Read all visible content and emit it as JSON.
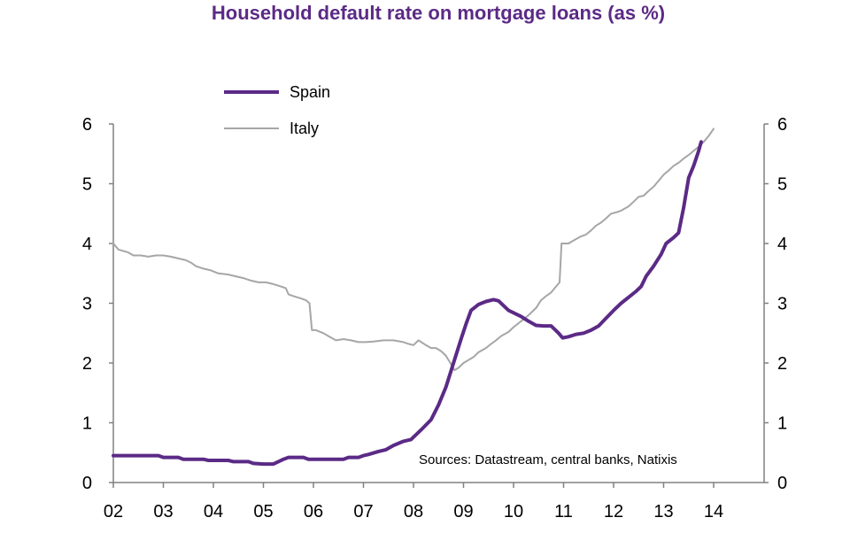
{
  "chart_data": {
    "type": "line",
    "title": "Household default rate on mortgage loans (as %)",
    "xlabel": "",
    "ylabel": "",
    "x_ticks": [
      "02",
      "03",
      "04",
      "05",
      "06",
      "07",
      "08",
      "09",
      "10",
      "11",
      "12",
      "13",
      "14"
    ],
    "ylim": [
      0,
      6
    ],
    "y_ticks": [
      "0",
      "1",
      "2",
      "3",
      "4",
      "5",
      "6"
    ],
    "y2_ticks": [
      "0",
      "1",
      "2",
      "3",
      "4",
      "5",
      "6"
    ],
    "legend_position": "top-left",
    "grid": false,
    "source_note": "Sources: Datastream, central banks, Natixis",
    "series": [
      {
        "name": "Spain",
        "color": "#5b2a86",
        "points": [
          [
            2002.0,
            0.45
          ],
          [
            2002.5,
            0.45
          ],
          [
            2002.9,
            0.45
          ],
          [
            2003.0,
            0.42
          ],
          [
            2003.3,
            0.42
          ],
          [
            2003.4,
            0.39
          ],
          [
            2003.8,
            0.39
          ],
          [
            2003.9,
            0.37
          ],
          [
            2004.3,
            0.37
          ],
          [
            2004.4,
            0.35
          ],
          [
            2004.7,
            0.35
          ],
          [
            2004.8,
            0.32
          ],
          [
            2005.0,
            0.31
          ],
          [
            2005.2,
            0.31
          ],
          [
            2005.3,
            0.35
          ],
          [
            2005.4,
            0.39
          ],
          [
            2005.5,
            0.42
          ],
          [
            2005.8,
            0.42
          ],
          [
            2005.9,
            0.39
          ],
          [
            2006.4,
            0.39
          ],
          [
            2006.6,
            0.39
          ],
          [
            2006.7,
            0.42
          ],
          [
            2006.9,
            0.42
          ],
          [
            2007.0,
            0.45
          ],
          [
            2007.1,
            0.47
          ],
          [
            2007.3,
            0.52
          ],
          [
            2007.45,
            0.55
          ],
          [
            2007.6,
            0.62
          ],
          [
            2007.8,
            0.69
          ],
          [
            2007.95,
            0.72
          ],
          [
            2008.15,
            0.88
          ],
          [
            2008.35,
            1.05
          ],
          [
            2008.5,
            1.3
          ],
          [
            2008.65,
            1.6
          ],
          [
            2008.8,
            2.0
          ],
          [
            2008.95,
            2.4
          ],
          [
            2009.05,
            2.65
          ],
          [
            2009.15,
            2.88
          ],
          [
            2009.3,
            2.98
          ],
          [
            2009.45,
            3.03
          ],
          [
            2009.6,
            3.06
          ],
          [
            2009.7,
            3.04
          ],
          [
            2009.8,
            2.96
          ],
          [
            2009.9,
            2.88
          ],
          [
            2010.0,
            2.84
          ],
          [
            2010.15,
            2.78
          ],
          [
            2010.3,
            2.7
          ],
          [
            2010.45,
            2.63
          ],
          [
            2010.6,
            2.62
          ],
          [
            2010.75,
            2.62
          ],
          [
            2010.9,
            2.5
          ],
          [
            2010.98,
            2.42
          ],
          [
            2011.1,
            2.44
          ],
          [
            2011.25,
            2.48
          ],
          [
            2011.4,
            2.5
          ],
          [
            2011.55,
            2.55
          ],
          [
            2011.7,
            2.62
          ],
          [
            2011.85,
            2.75
          ],
          [
            2012.0,
            2.88
          ],
          [
            2012.15,
            3.0
          ],
          [
            2012.3,
            3.1
          ],
          [
            2012.45,
            3.2
          ],
          [
            2012.55,
            3.28
          ],
          [
            2012.65,
            3.45
          ],
          [
            2012.8,
            3.62
          ],
          [
            2012.95,
            3.82
          ],
          [
            2013.05,
            4.0
          ],
          [
            2013.2,
            4.1
          ],
          [
            2013.3,
            4.18
          ],
          [
            2013.4,
            4.6
          ],
          [
            2013.5,
            5.1
          ],
          [
            2013.6,
            5.3
          ],
          [
            2013.7,
            5.55
          ],
          [
            2013.75,
            5.7
          ]
        ]
      },
      {
        "name": "Italy",
        "color": "#a6a6a6",
        "points": [
          [
            2002.0,
            4.0
          ],
          [
            2002.1,
            3.9
          ],
          [
            2002.3,
            3.85
          ],
          [
            2002.4,
            3.8
          ],
          [
            2002.55,
            3.8
          ],
          [
            2002.7,
            3.78
          ],
          [
            2002.85,
            3.8
          ],
          [
            2003.0,
            3.8
          ],
          [
            2003.15,
            3.78
          ],
          [
            2003.3,
            3.75
          ],
          [
            2003.45,
            3.72
          ],
          [
            2003.55,
            3.68
          ],
          [
            2003.65,
            3.62
          ],
          [
            2003.8,
            3.58
          ],
          [
            2003.95,
            3.55
          ],
          [
            2004.1,
            3.5
          ],
          [
            2004.3,
            3.48
          ],
          [
            2004.45,
            3.45
          ],
          [
            2004.6,
            3.42
          ],
          [
            2004.75,
            3.38
          ],
          [
            2004.9,
            3.35
          ],
          [
            2005.05,
            3.35
          ],
          [
            2005.2,
            3.32
          ],
          [
            2005.35,
            3.28
          ],
          [
            2005.45,
            3.25
          ],
          [
            2005.5,
            3.15
          ],
          [
            2005.6,
            3.12
          ],
          [
            2005.75,
            3.08
          ],
          [
            2005.85,
            3.05
          ],
          [
            2005.92,
            3.0
          ],
          [
            2005.97,
            2.55
          ],
          [
            2006.05,
            2.55
          ],
          [
            2006.2,
            2.5
          ],
          [
            2006.3,
            2.45
          ],
          [
            2006.45,
            2.38
          ],
          [
            2006.6,
            2.4
          ],
          [
            2006.75,
            2.38
          ],
          [
            2006.9,
            2.35
          ],
          [
            2007.05,
            2.35
          ],
          [
            2007.2,
            2.36
          ],
          [
            2007.4,
            2.38
          ],
          [
            2007.6,
            2.38
          ],
          [
            2007.8,
            2.35
          ],
          [
            2007.9,
            2.32
          ],
          [
            2008.0,
            2.3
          ],
          [
            2008.1,
            2.38
          ],
          [
            2008.25,
            2.3
          ],
          [
            2008.35,
            2.25
          ],
          [
            2008.45,
            2.25
          ],
          [
            2008.55,
            2.2
          ],
          [
            2008.65,
            2.12
          ],
          [
            2008.75,
            1.98
          ],
          [
            2008.82,
            1.88
          ],
          [
            2008.9,
            1.92
          ],
          [
            2009.0,
            2.0
          ],
          [
            2009.1,
            2.05
          ],
          [
            2009.2,
            2.1
          ],
          [
            2009.3,
            2.18
          ],
          [
            2009.45,
            2.25
          ],
          [
            2009.55,
            2.32
          ],
          [
            2009.65,
            2.38
          ],
          [
            2009.75,
            2.45
          ],
          [
            2009.9,
            2.52
          ],
          [
            2010.0,
            2.6
          ],
          [
            2010.15,
            2.7
          ],
          [
            2010.3,
            2.8
          ],
          [
            2010.45,
            2.92
          ],
          [
            2010.55,
            3.05
          ],
          [
            2010.65,
            3.12
          ],
          [
            2010.75,
            3.18
          ],
          [
            2010.85,
            3.28
          ],
          [
            2010.92,
            3.35
          ],
          [
            2010.96,
            4.0
          ],
          [
            2011.1,
            4.0
          ],
          [
            2011.2,
            4.05
          ],
          [
            2011.35,
            4.12
          ],
          [
            2011.45,
            4.15
          ],
          [
            2011.55,
            4.22
          ],
          [
            2011.65,
            4.3
          ],
          [
            2011.75,
            4.35
          ],
          [
            2011.85,
            4.42
          ],
          [
            2011.95,
            4.5
          ],
          [
            2012.05,
            4.52
          ],
          [
            2012.15,
            4.55
          ],
          [
            2012.3,
            4.62
          ],
          [
            2012.4,
            4.7
          ],
          [
            2012.5,
            4.78
          ],
          [
            2012.6,
            4.8
          ],
          [
            2012.7,
            4.88
          ],
          [
            2012.8,
            4.95
          ],
          [
            2012.9,
            5.05
          ],
          [
            2013.0,
            5.15
          ],
          [
            2013.1,
            5.22
          ],
          [
            2013.2,
            5.3
          ],
          [
            2013.3,
            5.35
          ],
          [
            2013.4,
            5.42
          ],
          [
            2013.5,
            5.48
          ],
          [
            2013.6,
            5.55
          ],
          [
            2013.7,
            5.62
          ],
          [
            2013.8,
            5.7
          ],
          [
            2013.9,
            5.8
          ],
          [
            2014.0,
            5.92
          ]
        ]
      }
    ]
  }
}
